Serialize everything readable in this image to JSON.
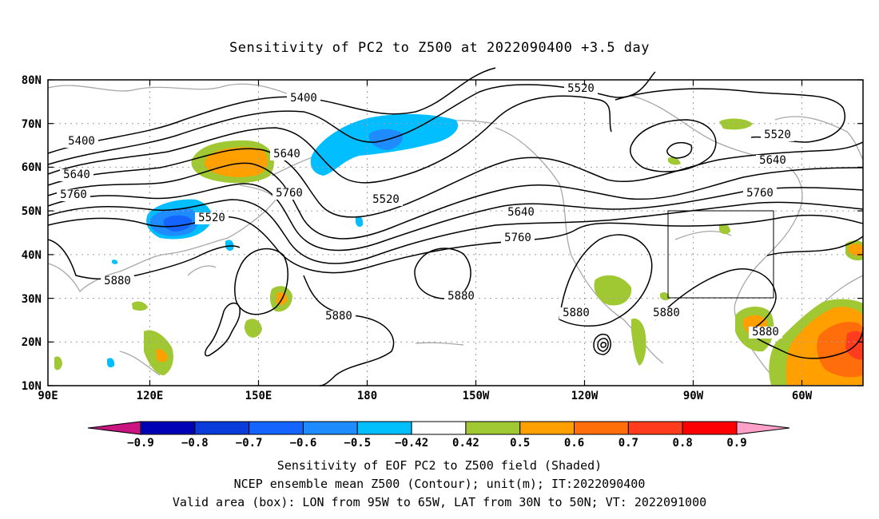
{
  "title": "Sensitivity of PC2 to Z500 at 2022090400 +3.5 day",
  "lat_labels": [
    "80N",
    "70N",
    "60N",
    "50N",
    "40N",
    "30N",
    "20N",
    "10N"
  ],
  "lon_labels": [
    "90E",
    "120E",
    "150E",
    "180",
    "150W",
    "120W",
    "90W",
    "60W"
  ],
  "contour_labels": [
    {
      "text": "5400"
    },
    {
      "text": "5400"
    },
    {
      "text": "5520"
    },
    {
      "text": "5520"
    },
    {
      "text": "5520"
    },
    {
      "text": "5520"
    },
    {
      "text": "5640"
    },
    {
      "text": "5640"
    },
    {
      "text": "5640"
    },
    {
      "text": "5640"
    },
    {
      "text": "5760"
    },
    {
      "text": "5760"
    },
    {
      "text": "5760"
    },
    {
      "text": "5760"
    },
    {
      "text": "5880"
    },
    {
      "text": "5880"
    },
    {
      "text": "5880"
    },
    {
      "text": "5880"
    },
    {
      "text": "5880"
    },
    {
      "text": "5880"
    }
  ],
  "colorbar": {
    "levels": [
      "-0.9",
      "-0.8",
      "-0.7",
      "-0.6",
      "-0.5",
      "-0.42",
      "0.42",
      "0.5",
      "0.6",
      "0.7",
      "0.8",
      "0.9"
    ],
    "colors": [
      "#c8157f",
      "#0000b4",
      "#0a3cdc",
      "#1464ff",
      "#1e8cff",
      "#00beff",
      "#ffffff",
      "#a0c832",
      "#ffa000",
      "#ff6e0a",
      "#ff3c1e",
      "#ff0000",
      "#ffa0c8"
    ]
  },
  "valid_box": {
    "lon_west": "95W",
    "lon_east": "65W",
    "lat_south": "30N",
    "lat_north": "50N"
  },
  "captions": {
    "line1": "Sensitivity of EOF PC2 to Z500 field (Shaded)",
    "line2": "NCEP ensemble mean Z500 (Contour); unit(m); IT:2022090400",
    "line3": "Valid area (box): LON from 95W to 65W, LAT from 30N to 50N; VT: 2022091000"
  }
}
